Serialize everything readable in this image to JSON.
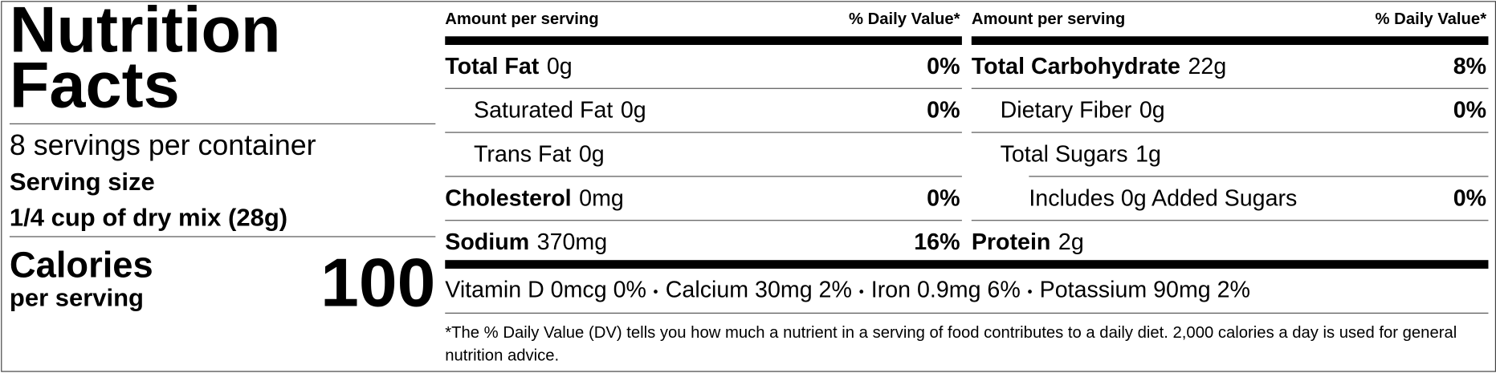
{
  "title": "Nutrition Facts",
  "servings": "8 servings per container",
  "serving_size_label": "Serving size",
  "serving_size": "1/4 cup of dry mix (28g)",
  "calories_label": "Calories",
  "calories_sub": "per serving",
  "calories": 100,
  "columns": [
    {
      "amount_header": "Amount per serving",
      "dv_header": "% Daily Value*",
      "rows": [
        {
          "name": "Total Fat",
          "amount": "0g",
          "dv": "0%"
        },
        {
          "name": "Saturated Fat",
          "amount": "0g",
          "dv": "0%"
        },
        {
          "name": "Trans Fat",
          "amount": "0g"
        },
        {
          "name": "Cholesterol",
          "amount": "0mg",
          "dv": "0%"
        },
        {
          "name": "Sodium",
          "amount": "370mg",
          "dv": "16%"
        }
      ]
    },
    {
      "amount_header": "Amount per serving",
      "dv_header": "% Daily Value*",
      "rows": [
        {
          "name": "Total Carbohydrate",
          "amount": "22g",
          "dv": "8%"
        },
        {
          "name": "Dietary Fiber",
          "amount": "0g",
          "dv": "0%"
        },
        {
          "name": "Total Sugars",
          "amount": "1g"
        },
        {
          "name": "Includes 0g Added Sugars",
          "dv": "0%"
        },
        {
          "name": "Protein",
          "amount": "2g"
        }
      ]
    }
  ],
  "vitamins": [
    "Vitamin D 0mcg 0%",
    "Calcium 30mg 2%",
    "Iron 0.9mg 6%",
    "Potassium 90mg 2%"
  ],
  "footnote": "*The % Daily Value (DV) tells you how much a nutrient in a serving of food contributes to a daily diet. 2,000 calories a day is used for general nutrition advice."
}
